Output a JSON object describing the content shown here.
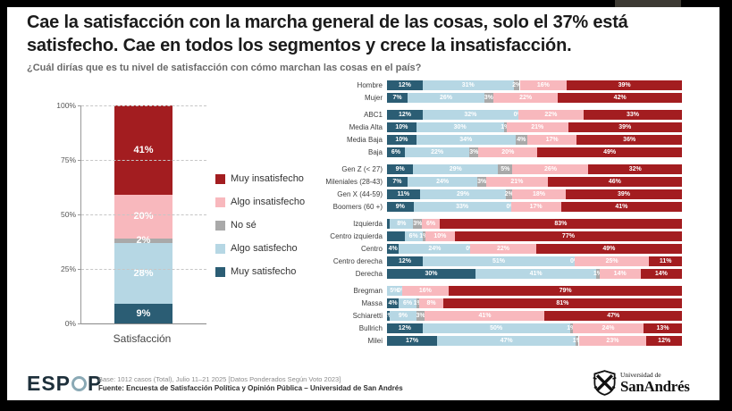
{
  "header": {
    "title": "Cae la satisfacción con la marcha general de las cosas, solo el 37% está satisfecho. Cae en todos los segmentos y crece la insatisfacción.",
    "subtitle": "¿Cuál dirías que es tu nivel de satisfacción con cómo marchan las cosas en el país?"
  },
  "colors": {
    "muy_insatisfecho": "#a31d20",
    "algo_insatisfecho": "#f8b8bd",
    "no_se": "#a9a9a9",
    "algo_satisfecho": "#b6d7e4",
    "muy_satisfecho": "#2b5d74"
  },
  "legend": {
    "items": [
      {
        "label": "Muy insatisfecho",
        "color": "#a31d20"
      },
      {
        "label": "Algo insatisfecho",
        "color": "#f8b8bd"
      },
      {
        "label": "No sé",
        "color": "#a9a9a9"
      },
      {
        "label": "Algo satisfecho",
        "color": "#b6d7e4"
      },
      {
        "label": "Muy satisfecho",
        "color": "#2b5d74"
      }
    ]
  },
  "chart_data": [
    {
      "type": "bar",
      "subtype": "stacked-vertical-column",
      "title": "",
      "xlabel": "Satisfacción",
      "ylabel": "",
      "ylim": [
        0,
        100
      ],
      "grid": "dashed-horizontal",
      "y_ticks": [
        "100%",
        "75%",
        "50%",
        "25%",
        "0%"
      ],
      "segments_top_to_bottom": [
        {
          "name": "Muy insatisfecho",
          "value": 41,
          "label": "41%",
          "color": "#a31d20"
        },
        {
          "name": "Algo insatisfecho",
          "value": 20,
          "label": "20%",
          "color": "#f8b8bd"
        },
        {
          "name": "No sé",
          "value": 2,
          "label": "2%",
          "color": "#a9a9a9"
        },
        {
          "name": "Algo satisfecho",
          "value": 28,
          "label": "28%",
          "color": "#b6d7e4"
        },
        {
          "name": "Muy satisfecho",
          "value": 9,
          "label": "9%",
          "color": "#2b5d74"
        }
      ]
    },
    {
      "type": "bar",
      "subtype": "stacked-horizontal-100pct",
      "series_left_to_right": [
        "Muy satisfecho",
        "Algo satisfecho",
        "No sé",
        "Algo insatisfecho",
        "Muy insatisfecho"
      ],
      "series_colors": [
        "#2b5d74",
        "#b6d7e4",
        "#a9a9a9",
        "#f8b8bd",
        "#a31d20"
      ],
      "groups": [
        [
          {
            "label": "Hombre",
            "values": [
              12,
              31,
              2,
              16,
              39
            ],
            "labels": [
              "12%",
              "31%",
              "2%",
              "16%",
              "39%"
            ]
          },
          {
            "label": "Mujer",
            "values": [
              7,
              26,
              3,
              22,
              42
            ],
            "labels": [
              "7%",
              "26%",
              "3%",
              "22%",
              "42%"
            ]
          }
        ],
        [
          {
            "label": "ABC1",
            "values": [
              12,
              32,
              0,
              22,
              33
            ],
            "labels": [
              "12%",
              "32%",
              "0%",
              "22%",
              "33%"
            ]
          },
          {
            "label": "Media Alta",
            "values": [
              10,
              30,
              1,
              21,
              39
            ],
            "labels": [
              "10%",
              "30%",
              "1%",
              "21%",
              "39%"
            ]
          },
          {
            "label": "Media Baja",
            "values": [
              10,
              34,
              4,
              17,
              36
            ],
            "labels": [
              "10%",
              "34%",
              "4%",
              "17%",
              "36%"
            ]
          },
          {
            "label": "Baja",
            "values": [
              6,
              22,
              3,
              20,
              49
            ],
            "labels": [
              "6%",
              "22%",
              "3%",
              "20%",
              "49%"
            ]
          }
        ],
        [
          {
            "label": "Gen Z (< 27)",
            "values": [
              9,
              29,
              5,
              26,
              32
            ],
            "labels": [
              "9%",
              "29%",
              "5%",
              "26%",
              "32%"
            ]
          },
          {
            "label": "Mileniales (28-43)",
            "values": [
              7,
              24,
              3,
              21,
              46
            ],
            "labels": [
              "7%",
              "24%",
              "3%",
              "21%",
              "46%"
            ]
          },
          {
            "label": "Gen X (44-59)",
            "values": [
              11,
              29,
              2,
              18,
              39
            ],
            "labels": [
              "11%",
              "29%",
              "2%",
              "18%",
              "39%"
            ]
          },
          {
            "label": "Boomers (60 +)",
            "values": [
              9,
              33,
              0,
              17,
              41
            ],
            "labels": [
              "9%",
              "33%",
              "0%",
              "17%",
              "41%"
            ]
          }
        ],
        [
          {
            "label": "Izquierda",
            "values": [
              1,
              8,
              3,
              6,
              83
            ],
            "labels": [
              "",
              "8%",
              "3%",
              "6%",
              "83%"
            ]
          },
          {
            "label": "Centro izquierda",
            "values": [
              6,
              6,
              1,
              10,
              77
            ],
            "labels": [
              "",
              "6%",
              "1%",
              "10%",
              "77%"
            ]
          },
          {
            "label": "Centro",
            "values": [
              4,
              24,
              0,
              22,
              49
            ],
            "labels": [
              "4%",
              "24%",
              "0%",
              "22%",
              "49%"
            ]
          },
          {
            "label": "Centro derecha",
            "values": [
              12,
              51,
              0,
              25,
              11
            ],
            "labels": [
              "12%",
              "51%",
              "0%",
              "25%",
              "11%"
            ]
          },
          {
            "label": "Derecha",
            "values": [
              30,
              41,
              1,
              14,
              14
            ],
            "labels": [
              "30%",
              "41%",
              "1%",
              "14%",
              "14%"
            ]
          }
        ],
        [
          {
            "label": "Bregman",
            "values": [
              0,
              5,
              0,
              16,
              79
            ],
            "labels": [
              "",
              "5%",
              "0%",
              "16%",
              "79%"
            ]
          },
          {
            "label": "Massa",
            "values": [
              4,
              6,
              1,
              8,
              81
            ],
            "labels": [
              "4%",
              "6%",
              "1%",
              "8%",
              "81%"
            ]
          },
          {
            "label": "Schiaretti",
            "values": [
              1,
              9,
              3,
              41,
              47
            ],
            "labels": [
              "1%",
              "9%",
              "3%",
              "41%",
              "47%"
            ]
          },
          {
            "label": "Bullrich",
            "values": [
              12,
              50,
              1,
              24,
              13
            ],
            "labels": [
              "12%",
              "50%",
              "1%",
              "24%",
              "13%"
            ]
          },
          {
            "label": "Milei",
            "values": [
              17,
              47,
              1,
              23,
              12
            ],
            "labels": [
              "17%",
              "47%",
              "1%",
              "23%",
              "12%"
            ]
          }
        ]
      ]
    }
  ],
  "footer": {
    "logo_full": "ESPOP",
    "logo_prefix": "ESP",
    "logo_suffix": "P",
    "base": "Base: 1012 casos (Total), Julio 11–21 2025 [Datos Ponderados Según Voto 2023]",
    "fuente": "Fuente: Encuesta de Satisfacción Política y Opinión Pública – Universidad de San Andrés",
    "university_line1": "Universidad de",
    "university_line2": "SanAndrés"
  }
}
